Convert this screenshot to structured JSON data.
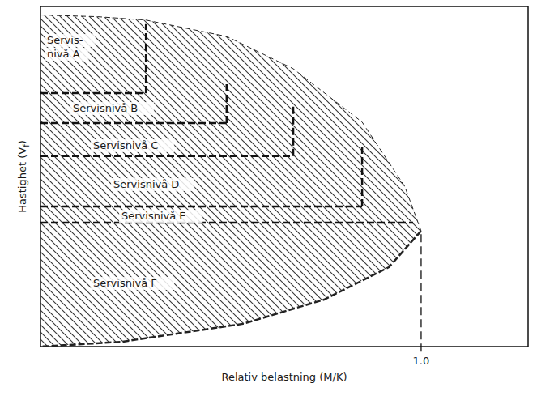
{
  "chart_data": {
    "type": "level_of_service",
    "x_label": "Relativ belastning (M/K)",
    "y_label": {
      "text": "Hastighet (V",
      "subscript": "f",
      "suffix": ")"
    },
    "xlim": [
      0,
      1.281
    ],
    "ylim": [
      0,
      1
    ],
    "xticks": [
      {
        "value": 1.0,
        "label": "1.0"
      }
    ],
    "tick_labels": "x",
    "upper_boundary": {
      "x": [
        0,
        0.15,
        0.277,
        0.489,
        0.664,
        0.845,
        0.957,
        1.0
      ],
      "y": [
        0.975,
        0.97,
        0.96,
        0.912,
        0.817,
        0.66,
        0.471,
        0.34
      ]
    },
    "lower_boundary": {
      "x": [
        1.0,
        0.915,
        0.745,
        0.532,
        0.213,
        0
      ],
      "y": [
        0.34,
        0.233,
        0.138,
        0.067,
        0.014,
        0
      ]
    },
    "levels": [
      {
        "label": [
          "Servis-",
          "nivå A"
        ],
        "y_min": 0.745,
        "x_max": 0.277,
        "y_top": 0.948
      },
      {
        "label": [
          "Servisnivå B"
        ],
        "y_min": 0.657,
        "x_max": 0.489,
        "y_top": 0.774
      },
      {
        "label": [
          "Servisnivå C"
        ],
        "y_min": 0.56,
        "x_max": 0.664,
        "y_top": 0.71
      },
      {
        "label": [
          "Servisnivå D"
        ],
        "y_min": 0.412,
        "x_max": 0.845,
        "y_top": 0.59
      },
      {
        "label": [
          "Servisnivå E"
        ],
        "y_min": 0.364,
        "x_max": 0.979
      },
      {
        "label": [
          "Servisnivå F"
        ]
      }
    ]
  }
}
